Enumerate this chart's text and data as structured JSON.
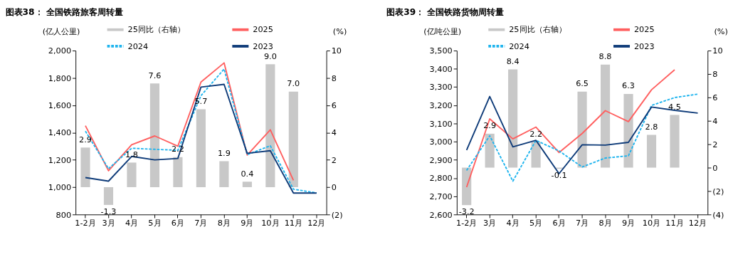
{
  "chart_data": [
    {
      "type": "line",
      "title": "图表38：  全国铁路旅客周转量",
      "ylabel": "(亿人公里)",
      "y2label": "(%)",
      "categories": [
        "1-2月",
        "3月",
        "4月",
        "5月",
        "6月",
        "7月",
        "8月",
        "9月",
        "10月",
        "11月",
        "12月"
      ],
      "series": [
        {
          "name": "25同比（右轴）",
          "type": "bar",
          "axis": "y2",
          "color": "#c8c8c8",
          "values": [
            2.9,
            -1.3,
            1.8,
            7.6,
            2.2,
            5.7,
            1.9,
            0.4,
            9.0,
            7.0,
            null
          ],
          "value_labels": [
            "2.9",
            "-1.3",
            "1.8",
            "7.6",
            "2.2",
            "5.7",
            "1.9",
            "0.4",
            "9.0",
            "7.0",
            null
          ]
        },
        {
          "name": "2025",
          "color": "#ff5f5f",
          "line_style": "solid",
          "values": [
            1450,
            1120,
            1310,
            1375,
            1300,
            1770,
            1910,
            1235,
            1420,
            1050,
            null
          ]
        },
        {
          "name": "2024",
          "color": "#1eb4ee",
          "line_style": "dashed",
          "values": [
            1410,
            1135,
            1285,
            1277,
            1270,
            1670,
            1865,
            1238,
            1303,
            985,
            958
          ]
        },
        {
          "name": "2023",
          "color": "#0d3a78",
          "line_style": "solid",
          "values": [
            1070,
            1044,
            1225,
            1200,
            1210,
            1733,
            1753,
            1248,
            1267,
            957,
            957
          ]
        }
      ],
      "ylim": [
        800,
        2000
      ],
      "yticks": [
        800,
        {
          "value": 1000,
          "label": "1,000"
        },
        {
          "value": 1200,
          "label": "1,200"
        },
        {
          "value": 1400,
          "label": "1,400"
        },
        {
          "value": 1600,
          "label": "1,600"
        },
        {
          "value": 1800,
          "label": "1,800"
        },
        {
          "value": 2000,
          "label": "2,000"
        }
      ],
      "y2lim": [
        -2,
        10
      ],
      "y2ticks": [
        {
          "value": -2,
          "label": "(2)"
        },
        0,
        2,
        4,
        6,
        8,
        10
      ],
      "legend": "top",
      "grid": false
    },
    {
      "type": "line",
      "title": "图表39：  全国铁路货物周转量",
      "ylabel": "(亿吨公里)",
      "y2label": "(%)",
      "categories": [
        "1-2月",
        "3月",
        "4月",
        "5月",
        "6月",
        "7月",
        "8月",
        "9月",
        "10月",
        "11月",
        "12月"
      ],
      "series": [
        {
          "name": "25同比（右轴）",
          "type": "bar",
          "axis": "y2",
          "color": "#c8c8c8",
          "values": [
            -3.2,
            2.9,
            8.4,
            2.2,
            -0.1,
            6.5,
            8.8,
            6.3,
            2.8,
            4.5,
            null
          ],
          "value_labels": [
            "-3.2",
            "2.9",
            "8.4",
            "2.2",
            "-0.1",
            "6.5",
            "8.8",
            "6.3",
            "2.8",
            "4.5",
            null
          ]
        },
        {
          "name": "2025",
          "color": "#ff5f5f",
          "line_style": "solid",
          "values": [
            2750,
            3125,
            3015,
            3080,
            2940,
            3045,
            3170,
            3110,
            3285,
            3395,
            null
          ]
        },
        {
          "name": "2024",
          "color": "#1eb4ee",
          "line_style": "dashed",
          "values": [
            2842,
            3032,
            2783,
            3007,
            2949,
            2861,
            2910,
            2922,
            3199,
            3242,
            3261
          ]
        },
        {
          "name": "2023",
          "color": "#0d3a78",
          "line_style": "solid",
          "values": [
            2954,
            3248,
            2971,
            3007,
            2824,
            2983,
            2981,
            2996,
            3190,
            3172,
            3157
          ]
        }
      ],
      "ylim": [
        2600,
        3500
      ],
      "yticks": [
        {
          "value": 2600,
          "label": "2,600"
        },
        {
          "value": 2700,
          "label": "2,700"
        },
        {
          "value": 2800,
          "label": "2,800"
        },
        {
          "value": 2900,
          "label": "2,900"
        },
        {
          "value": 3000,
          "label": "3,000"
        },
        {
          "value": 3100,
          "label": "3,100"
        },
        {
          "value": 3200,
          "label": "3,200"
        },
        {
          "value": 3300,
          "label": "3,300"
        },
        {
          "value": 3400,
          "label": "3,400"
        },
        {
          "value": 3500,
          "label": "3,500"
        }
      ],
      "y2lim": [
        -4,
        10
      ],
      "y2ticks": [
        {
          "value": -4,
          "label": "(4)"
        },
        {
          "value": -2,
          "label": "(2)"
        },
        0,
        2,
        4,
        6,
        8,
        10
      ],
      "legend": "top",
      "grid": false
    }
  ]
}
